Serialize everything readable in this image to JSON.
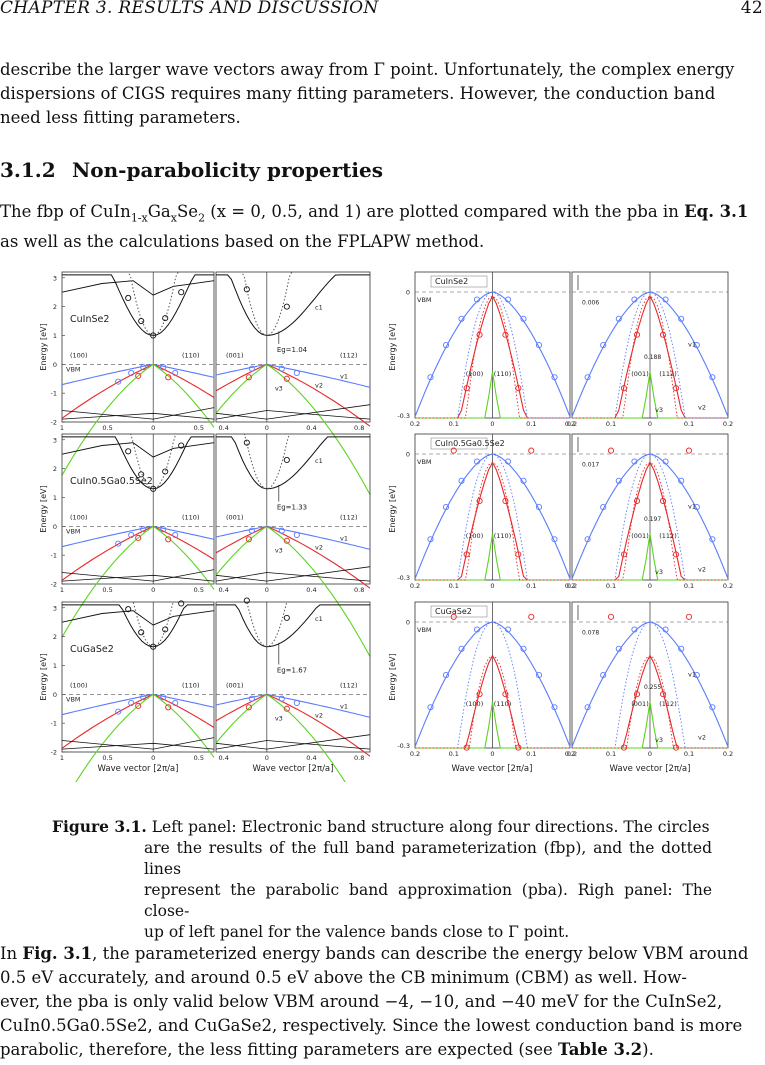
{
  "header": {
    "chapter": "CHAPTER 3.  RESULTS AND DISCUSSION",
    "page": "42"
  },
  "intro": {
    "line1": "describe the larger wave vectors away from Γ point. Unfortunately, the complex energy",
    "line2": "dispersions of CIGS requires many fitting parameters.  However, the conduction band",
    "line3": "need less fitting parameters."
  },
  "section": {
    "number": "3.1.2",
    "title": "Non-parabolicity properties"
  },
  "fbp_para": {
    "l1_a": "The fbp of CuIn",
    "l1_sub1": "1-x",
    "l1_b": "Ga",
    "l1_sub2": "x",
    "l1_c": "Se",
    "l1_sub3": "2",
    "l1_d": " (x = 0, 0.5, and 1) are plotted compared with the pba in ",
    "l1_ref": "Eq. 3.1",
    "l2": "as well as the calculations based on the FPLAPW method."
  },
  "figure": {
    "materials": [
      "CuInSe2",
      "CuIn0.5Ga0.5Se2",
      "CuGaSe2"
    ],
    "left_dirs": {
      "a": "(100)",
      "b": "(110)",
      "c": "(001)",
      "d": "(112)"
    },
    "gaps": [
      "Eg=1.04",
      "Eg=1.33",
      "Eg=1.67"
    ],
    "splits_top": [
      "0.006",
      "0.017",
      "0.078"
    ],
    "splits_mid": [
      "0.188",
      "0.197",
      "0.255"
    ],
    "band_labels": {
      "c1": "c1",
      "v1": "v1",
      "v2": "v2",
      "v3": "v3",
      "vbm": "VBM"
    },
    "ylabel": "Energy [eV]",
    "xlabel": "Wave vector [2π/a]",
    "left_ticks_y": [
      "3",
      "2",
      "1",
      "0",
      "-1",
      "-2"
    ],
    "right_ticks_y": [
      "0",
      "-0.3"
    ],
    "ticks_x_a": [
      "1",
      "0.5",
      "0",
      "0.5"
    ],
    "ticks_x_b": [
      "0.4",
      "0",
      "0.4",
      "0.8"
    ],
    "ticks_x_r": [
      "0.2",
      "0.1",
      "0",
      "0.1",
      "0.2"
    ]
  },
  "caption": {
    "label": "Figure 3.1.",
    "line1": " Left panel: Electronic band structure along four directions.  The circles",
    "line2": "are the results of the full band parameterization (fbp), and the dotted lines",
    "line3": "represent the parabolic band approximation (pba).  Righ panel: The close-",
    "line4": "up of left panel for the valence bands close to Γ point."
  },
  "body": {
    "p1_a": "In ",
    "p1_ref": "Fig. 3.1",
    "p1_b": ", the parameterized energy bands can describe the energy below VBM around",
    "p2": "0.5 eV accurately, and around 0.5 eV above the CB minimum (CBM) as well.  How-",
    "p3": "ever, the pba is only valid below VBM around −4, −10, and −40 meV for the CuInSe2,",
    "p4": "CuIn0.5Ga0.5Se2, and CuGaSe2, respectively.  Since the lowest conduction band is more",
    "p5_a": "parabolic, therefore, the less fitting parameters are expected (see ",
    "p5_ref": "Table 3.2",
    "p5_b": ")."
  },
  "colors": {
    "blue": "#5a7bff",
    "red": "#e8282a",
    "green": "#5ad51e",
    "black": "#111111"
  }
}
